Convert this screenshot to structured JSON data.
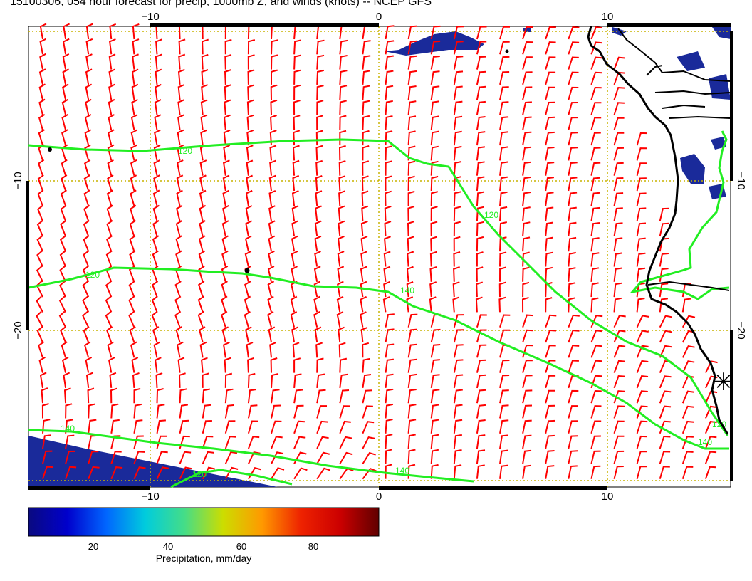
{
  "title": "15100306, 054 hour forecast for precip, 1000mb Z, and winds (knots) -- NCEP GFS",
  "axes": {
    "x_ticks": [
      "−10",
      "0",
      "10"
    ],
    "y_ticks": [
      "−10",
      "−20"
    ]
  },
  "contours": {
    "labels": [
      "120",
      "140"
    ],
    "color": "#22ee22"
  },
  "colorbar": {
    "label": "Precipitation, mm/day",
    "ticks": [
      "20",
      "40",
      "60",
      "80"
    ],
    "colors": [
      "#0a0a80",
      "#0000cc",
      "#0066ff",
      "#00ccdd",
      "#44dd88",
      "#ccdd00",
      "#ff9900",
      "#ee2200",
      "#cc0000",
      "#600000"
    ]
  },
  "colors": {
    "wind_barbs": "#ff0000",
    "coastline": "#000000",
    "grid": "#c8b400",
    "precip": "#1a2a9a"
  },
  "map": {
    "marker": "✳"
  }
}
